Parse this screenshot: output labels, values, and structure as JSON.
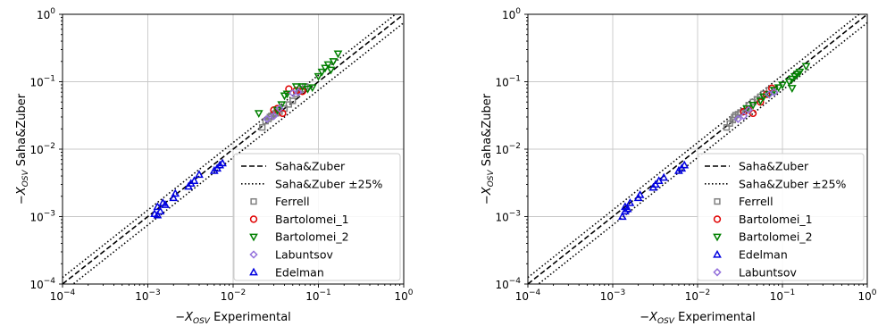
{
  "chart_data": [
    {
      "type": "scatter",
      "xlabel": "−X_OSV Experimental",
      "ylabel": "−X_OSV Saha&Zuber",
      "xscale": "log",
      "yscale": "log",
      "xlim": [
        0.0001,
        1
      ],
      "ylim": [
        0.0001,
        1
      ],
      "grid": true,
      "legend_position": "lower-right",
      "x_ticks": [
        {
          "base": "10",
          "exp": "−4"
        },
        {
          "base": "10",
          "exp": "−3"
        },
        {
          "base": "10",
          "exp": "−2"
        },
        {
          "base": "10",
          "exp": "−1"
        },
        {
          "base": "10",
          "exp": "0"
        }
      ],
      "y_ticks": [
        {
          "base": "10",
          "exp": "−4"
        },
        {
          "base": "10",
          "exp": "−3"
        },
        {
          "base": "10",
          "exp": "−2"
        },
        {
          "base": "10",
          "exp": "−1"
        },
        {
          "base": "10",
          "exp": "0"
        }
      ],
      "lines": [
        {
          "name": "Saha&Zuber",
          "style": "dashed",
          "color": "#000000",
          "factor": 1.0
        },
        {
          "name": "Saha&Zuber ±25%",
          "style": "dotted",
          "color": "#000000",
          "factors": [
            1.25,
            0.75
          ]
        }
      ],
      "series": [
        {
          "name": "Ferrell",
          "marker": "square",
          "color": "#808080",
          "points": [
            [
              0.022,
              0.021
            ],
            [
              0.024,
              0.026
            ],
            [
              0.026,
              0.028
            ],
            [
              0.027,
              0.03
            ],
            [
              0.028,
              0.031
            ],
            [
              0.03,
              0.033
            ],
            [
              0.032,
              0.034
            ],
            [
              0.035,
              0.036
            ],
            [
              0.04,
              0.04
            ],
            [
              0.045,
              0.046
            ],
            [
              0.05,
              0.052
            ],
            [
              0.055,
              0.066
            ],
            [
              0.06,
              0.072
            ],
            [
              0.065,
              0.078
            ],
            [
              0.07,
              0.085
            ]
          ]
        },
        {
          "name": "Bartolomei_1",
          "marker": "circle",
          "color": "#e00000",
          "points": [
            [
              0.03,
              0.038
            ],
            [
              0.033,
              0.04
            ],
            [
              0.038,
              0.034
            ],
            [
              0.045,
              0.078
            ],
            [
              0.055,
              0.074
            ],
            [
              0.065,
              0.072
            ]
          ]
        },
        {
          "name": "Bartolomei_2",
          "marker": "triangle-down",
          "color": "#008000",
          "points": [
            [
              0.02,
              0.034
            ],
            [
              0.033,
              0.038
            ],
            [
              0.037,
              0.046
            ],
            [
              0.04,
              0.062
            ],
            [
              0.043,
              0.066
            ],
            [
              0.055,
              0.085
            ],
            [
              0.065,
              0.085
            ],
            [
              0.075,
              0.078
            ],
            [
              0.085,
              0.082
            ],
            [
              0.1,
              0.12
            ],
            [
              0.11,
              0.14
            ],
            [
              0.12,
              0.16
            ],
            [
              0.13,
              0.18
            ],
            [
              0.14,
              0.15
            ],
            [
              0.15,
              0.2
            ],
            [
              0.17,
              0.26
            ]
          ]
        },
        {
          "name": "Labuntsov",
          "marker": "diamond",
          "color": "#9370db",
          "points": [
            [
              0.025,
              0.028
            ],
            [
              0.03,
              0.031
            ],
            [
              0.035,
              0.04
            ],
            [
              0.05,
              0.068
            ],
            [
              0.058,
              0.07
            ]
          ]
        },
        {
          "name": "Edelman",
          "marker": "triangle-up",
          "color": "#0000e0",
          "points": [
            [
              0.0012,
              0.0011
            ],
            [
              0.0013,
              0.00105
            ],
            [
              0.0013,
              0.0014
            ],
            [
              0.0014,
              0.0012
            ],
            [
              0.0015,
              0.0016
            ],
            [
              0.0016,
              0.0015
            ],
            [
              0.002,
              0.0019
            ],
            [
              0.0021,
              0.0022
            ],
            [
              0.003,
              0.0028
            ],
            [
              0.0032,
              0.0031
            ],
            [
              0.0035,
              0.0034
            ],
            [
              0.004,
              0.0042
            ],
            [
              0.006,
              0.0048
            ],
            [
              0.0065,
              0.0052
            ],
            [
              0.007,
              0.0058
            ],
            [
              0.0075,
              0.0062
            ]
          ]
        }
      ]
    },
    {
      "type": "scatter",
      "xlabel": "−X_OSV Experimental",
      "ylabel": "−X_OSV Saha&Zuber",
      "xscale": "log",
      "yscale": "log",
      "xlim": [
        0.0001,
        1
      ],
      "ylim": [
        0.0001,
        1
      ],
      "grid": true,
      "legend_position": "lower-right",
      "x_ticks": [
        {
          "base": "10",
          "exp": "−4"
        },
        {
          "base": "10",
          "exp": "−3"
        },
        {
          "base": "10",
          "exp": "−2"
        },
        {
          "base": "10",
          "exp": "−1"
        },
        {
          "base": "10",
          "exp": "0"
        }
      ],
      "y_ticks": [
        {
          "base": "10",
          "exp": "−4"
        },
        {
          "base": "10",
          "exp": "−3"
        },
        {
          "base": "10",
          "exp": "−2"
        },
        {
          "base": "10",
          "exp": "−1"
        },
        {
          "base": "10",
          "exp": "0"
        }
      ],
      "lines": [
        {
          "name": "Saha&Zuber",
          "style": "dashed",
          "color": "#000000",
          "factor": 1.0
        },
        {
          "name": "Saha&Zuber ±25%",
          "style": "dotted",
          "color": "#000000",
          "factors": [
            1.25,
            0.75
          ]
        }
      ],
      "series": [
        {
          "name": "Ferrell",
          "marker": "square",
          "color": "#808080",
          "points": [
            [
              0.022,
              0.021
            ],
            [
              0.024,
              0.024
            ],
            [
              0.026,
              0.027
            ],
            [
              0.027,
              0.03
            ],
            [
              0.028,
              0.032
            ],
            [
              0.03,
              0.033
            ],
            [
              0.032,
              0.035
            ],
            [
              0.035,
              0.036
            ],
            [
              0.038,
              0.04
            ],
            [
              0.04,
              0.045
            ],
            [
              0.045,
              0.05
            ],
            [
              0.05,
              0.055
            ],
            [
              0.055,
              0.06
            ],
            [
              0.06,
              0.066
            ],
            [
              0.07,
              0.075
            ]
          ]
        },
        {
          "name": "Bartolomei_1",
          "marker": "circle",
          "color": "#e00000",
          "points": [
            [
              0.035,
              0.036
            ],
            [
              0.04,
              0.038
            ],
            [
              0.045,
              0.034
            ],
            [
              0.055,
              0.05
            ],
            [
              0.065,
              0.065
            ],
            [
              0.075,
              0.08
            ]
          ]
        },
        {
          "name": "Bartolomei_2",
          "marker": "triangle-down",
          "color": "#008000",
          "points": [
            [
              0.038,
              0.04
            ],
            [
              0.045,
              0.045
            ],
            [
              0.055,
              0.052
            ],
            [
              0.06,
              0.06
            ],
            [
              0.07,
              0.065
            ],
            [
              0.08,
              0.075
            ],
            [
              0.09,
              0.082
            ],
            [
              0.1,
              0.09
            ],
            [
              0.12,
              0.1
            ],
            [
              0.13,
              0.11
            ],
            [
              0.14,
              0.12
            ],
            [
              0.15,
              0.13
            ],
            [
              0.16,
              0.14
            ],
            [
              0.13,
              0.08
            ],
            [
              0.19,
              0.17
            ]
          ]
        },
        {
          "name": "Edelman",
          "marker": "triangle-up",
          "color": "#0000e0",
          "points": [
            [
              0.0013,
              0.001
            ],
            [
              0.0014,
              0.0012
            ],
            [
              0.0014,
              0.0014
            ],
            [
              0.0015,
              0.0013
            ],
            [
              0.0016,
              0.0016
            ],
            [
              0.002,
              0.0019
            ],
            [
              0.0021,
              0.0021
            ],
            [
              0.003,
              0.0027
            ],
            [
              0.0032,
              0.003
            ],
            [
              0.0035,
              0.0034
            ],
            [
              0.004,
              0.0038
            ],
            [
              0.006,
              0.0048
            ],
            [
              0.0065,
              0.0052
            ],
            [
              0.007,
              0.0058
            ]
          ]
        },
        {
          "name": "Labuntsov",
          "marker": "diamond",
          "color": "#9370db",
          "points": [
            [
              0.03,
              0.028
            ],
            [
              0.035,
              0.031
            ],
            [
              0.04,
              0.038
            ],
            [
              0.07,
              0.065
            ],
            [
              0.08,
              0.07
            ]
          ]
        }
      ]
    }
  ]
}
